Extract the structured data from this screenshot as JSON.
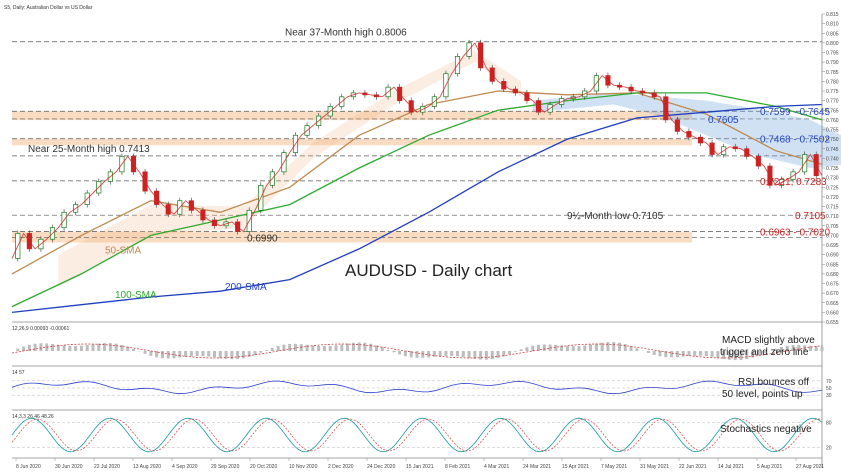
{
  "header": {
    "symbol_line": "S5, Daily: Australian Dollar vs US Dollar"
  },
  "chart_data": {
    "type": "line",
    "title": "AUDUSD - Daily chart",
    "ylim": [
      0.655,
      0.815
    ],
    "yticks": [
      "0.815",
      "0.810",
      "0.805",
      "0.800",
      "0.795",
      "0.790",
      "0.785",
      "0.780",
      "0.775",
      "0.770",
      "0.765",
      "0.760",
      "0.755",
      "0.750",
      "0.745",
      "0.740",
      "0.735",
      "0.730",
      "0.725",
      "0.720",
      "0.715",
      "0.710",
      "0.705",
      "0.700",
      "0.695",
      "0.690",
      "0.685",
      "0.680",
      "0.675",
      "0.670",
      "0.665",
      "0.660",
      "0.655"
    ],
    "xticks": [
      "8 Jun 2020",
      "30 Jun 2020",
      "22 Jul 2020",
      "13 Aug 2020",
      "4 Sep 2020",
      "29 Sep 2020",
      "20 Oct 2020",
      "10 Nov 2020",
      "2 Dec 2020",
      "24 Dec 2020",
      "15 Jan 2021",
      "8 Feb 2021",
      "4 Mar 2021",
      "24 Mar 2021",
      "15 Apr 2021",
      "7 May 2021",
      "31 May 2021",
      "22 Jun 2021",
      "14 Jul 2021",
      "5 Aug 2021",
      "27 Aug 2021"
    ],
    "price": {
      "name": "AUDUSD",
      "points": [
        [
          0,
          0.688
        ],
        [
          10,
          0.701
        ],
        [
          20,
          0.693
        ],
        [
          30,
          0.698
        ],
        [
          40,
          0.704
        ],
        [
          50,
          0.712
        ],
        [
          60,
          0.716
        ],
        [
          70,
          0.722
        ],
        [
          80,
          0.728
        ],
        [
          90,
          0.733
        ],
        [
          100,
          0.741
        ],
        [
          110,
          0.733
        ],
        [
          120,
          0.723
        ],
        [
          130,
          0.716
        ],
        [
          140,
          0.711
        ],
        [
          150,
          0.718
        ],
        [
          160,
          0.713
        ],
        [
          170,
          0.708
        ],
        [
          180,
          0.705
        ],
        [
          190,
          0.707
        ],
        [
          200,
          0.702
        ],
        [
          210,
          0.713
        ],
        [
          220,
          0.726
        ],
        [
          230,
          0.733
        ],
        [
          240,
          0.743
        ],
        [
          250,
          0.752
        ],
        [
          260,
          0.757
        ],
        [
          270,
          0.762
        ],
        [
          280,
          0.767
        ],
        [
          290,
          0.772
        ],
        [
          300,
          0.774
        ],
        [
          310,
          0.773
        ],
        [
          320,
          0.772
        ],
        [
          330,
          0.777
        ],
        [
          340,
          0.77
        ],
        [
          350,
          0.764
        ],
        [
          360,
          0.767
        ],
        [
          370,
          0.772
        ],
        [
          380,
          0.784
        ],
        [
          390,
          0.793
        ],
        [
          400,
          0.8
        ],
        [
          410,
          0.787
        ],
        [
          420,
          0.78
        ],
        [
          430,
          0.776
        ],
        [
          440,
          0.774
        ],
        [
          450,
          0.77
        ],
        [
          460,
          0.764
        ],
        [
          470,
          0.768
        ],
        [
          480,
          0.771
        ],
        [
          490,
          0.772
        ],
        [
          500,
          0.775
        ],
        [
          510,
          0.783
        ],
        [
          520,
          0.778
        ],
        [
          530,
          0.777
        ],
        [
          540,
          0.775
        ],
        [
          550,
          0.774
        ],
        [
          560,
          0.772
        ],
        [
          570,
          0.76
        ],
        [
          580,
          0.754
        ],
        [
          590,
          0.751
        ],
        [
          600,
          0.748
        ],
        [
          610,
          0.742
        ],
        [
          620,
          0.746
        ],
        [
          630,
          0.745
        ],
        [
          640,
          0.741
        ],
        [
          650,
          0.736
        ],
        [
          660,
          0.726
        ],
        [
          670,
          0.729
        ],
        [
          680,
          0.733
        ],
        [
          690,
          0.742
        ],
        [
          700,
          0.731
        ]
      ]
    },
    "series": [
      {
        "name": "50-SMA",
        "color": "#c08a50",
        "points": [
          [
            0,
            0.68
          ],
          [
            60,
            0.7
          ],
          [
            120,
            0.718
          ],
          [
            180,
            0.712
          ],
          [
            240,
            0.725
          ],
          [
            300,
            0.752
          ],
          [
            360,
            0.768
          ],
          [
            420,
            0.775
          ],
          [
            480,
            0.773
          ],
          [
            540,
            0.774
          ],
          [
            600,
            0.763
          ],
          [
            660,
            0.744
          ],
          [
            700,
            0.737
          ]
        ]
      },
      {
        "name": "100-SMA",
        "color": "#2faa2f",
        "points": [
          [
            0,
            0.663
          ],
          [
            60,
            0.68
          ],
          [
            120,
            0.7
          ],
          [
            180,
            0.708
          ],
          [
            240,
            0.716
          ],
          [
            300,
            0.735
          ],
          [
            360,
            0.752
          ],
          [
            420,
            0.765
          ],
          [
            480,
            0.77
          ],
          [
            540,
            0.774
          ],
          [
            600,
            0.774
          ],
          [
            660,
            0.767
          ],
          [
            700,
            0.76
          ]
        ]
      },
      {
        "name": "200-SMA",
        "color": "#1f3fbf",
        "points": [
          [
            0,
            0.66
          ],
          [
            60,
            0.664
          ],
          [
            120,
            0.668
          ],
          [
            180,
            0.671
          ],
          [
            240,
            0.677
          ],
          [
            300,
            0.693
          ],
          [
            360,
            0.712
          ],
          [
            420,
            0.733
          ],
          [
            480,
            0.75
          ],
          [
            540,
            0.761
          ],
          [
            600,
            0.764
          ],
          [
            660,
            0.767
          ],
          [
            700,
            0.768
          ]
        ]
      }
    ],
    "levels": [
      {
        "value": 0.8006,
        "label": "Near 37-Month high 0.8006",
        "color": "#333333"
      },
      {
        "value": 0.7645,
        "label": "0.7599 - 0.7645",
        "color": "#2246c8",
        "zone_low": 0.7599
      },
      {
        "value": 0.7605,
        "label": "0.7605",
        "color": "#2246c8"
      },
      {
        "value": 0.7502,
        "label": "0.7468 - 0.7502",
        "color": "#2246c8",
        "zone_low": 0.7468
      },
      {
        "value": 0.7413,
        "label": "Near 25-Month high 0.7413",
        "color": "#333333"
      },
      {
        "value": 0.7283,
        "label": "0.7221, 0.7283",
        "color": "#d02020"
      },
      {
        "value": 0.7105,
        "label": "0.7105",
        "color": "#d02020"
      },
      {
        "value": 0.702,
        "label": "0.6963 - 0.7020",
        "color": "#d02020",
        "zone_low": 0.6963
      },
      {
        "value": 0.699,
        "label": "0.6990",
        "color": "#333333"
      }
    ],
    "annotations": {
      "low": "9½-Month low 0.7105",
      "sma50": "50-SMA",
      "sma100": "100-SMA",
      "sma200": "200-SMA"
    }
  },
  "indicators": {
    "macd": {
      "header": "12,26,9 0.00093 -0.00061",
      "note_line1": "MACD slightly above",
      "note_line2": "trigger and zero line"
    },
    "rsi": {
      "header": "14 57",
      "note_line1": "RSI bounces off",
      "note_line2": "50 level, points up",
      "yticks": [
        "70",
        "50",
        "30"
      ]
    },
    "stoch": {
      "header": "14,3,3 26.46 48.26",
      "note": "Stochastics negative",
      "yticks": [
        "80",
        "20"
      ]
    }
  },
  "colors": {
    "price": "#cc2222",
    "zone": "#f6c9a0",
    "ichimoku": "#7aa8e0",
    "grid": "#555555"
  }
}
